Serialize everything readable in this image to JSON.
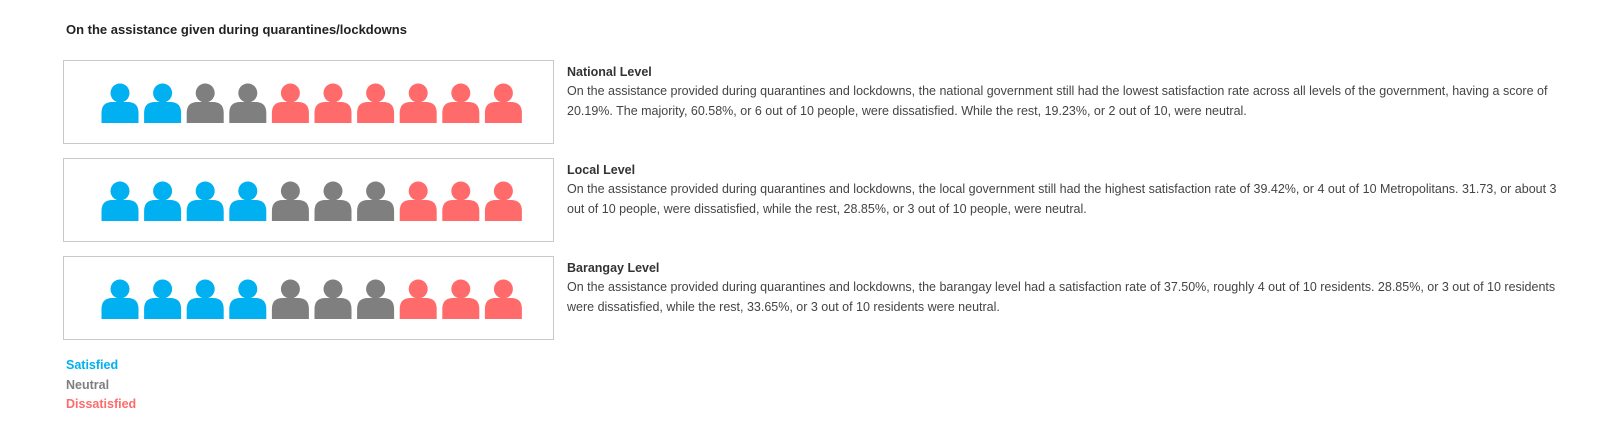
{
  "page_title": "On the assistance given during quarantines/lockdowns",
  "colors": {
    "satisfied": "#00b0f0",
    "neutral": "#807f7f",
    "dissatisfied": "#ff6b6b"
  },
  "levels": [
    {
      "title": "National Level",
      "text": "On the assistance provided during quarantines and lockdowns, the national government still had the lowest satisfaction rate across all levels of the government, having a score of 20.19%. The majority, 60.58%, or 6 out of 10 people, were dissatisfied. While the rest, 19.23%, or 2 out of 10, were neutral."
    },
    {
      "title": "Local Level",
      "text": "On the assistance provided during quarantines and lockdowns, the local government still had the highest satisfaction rate of 39.42%, or 4 out of 10 Metropolitans. 31.73, or about 3 out of 10 people, were dissatisfied, while the rest, 28.85%, or 3 out of 10 people, were neutral."
    },
    {
      "title": "Barangay Level",
      "text": "On the assistance provided during quarantines and lockdowns, the barangay level had a satisfaction rate of 37.50%, roughly 4 out of 10 residents. 28.85%, or 3 out of 10 residents were dissatisfied, while the rest, 33.65%, or 3 out of 10 residents were neutral."
    }
  ],
  "legend": [
    "Satisfied",
    "Neutral",
    "Dissatisfied"
  ],
  "chart_data": {
    "type": "pictograph",
    "title": "On the assistance given during quarantines/lockdowns",
    "unit": "people out of 10",
    "categories": [
      "National Level",
      "Local Level",
      "Barangay Level"
    ],
    "series": [
      {
        "name": "Satisfied",
        "values": [
          2,
          4,
          4
        ]
      },
      {
        "name": "Neutral",
        "values": [
          2,
          3,
          3
        ]
      },
      {
        "name": "Dissatisfied",
        "values": [
          6,
          3,
          3
        ]
      }
    ],
    "legend_position": "bottom-left"
  }
}
